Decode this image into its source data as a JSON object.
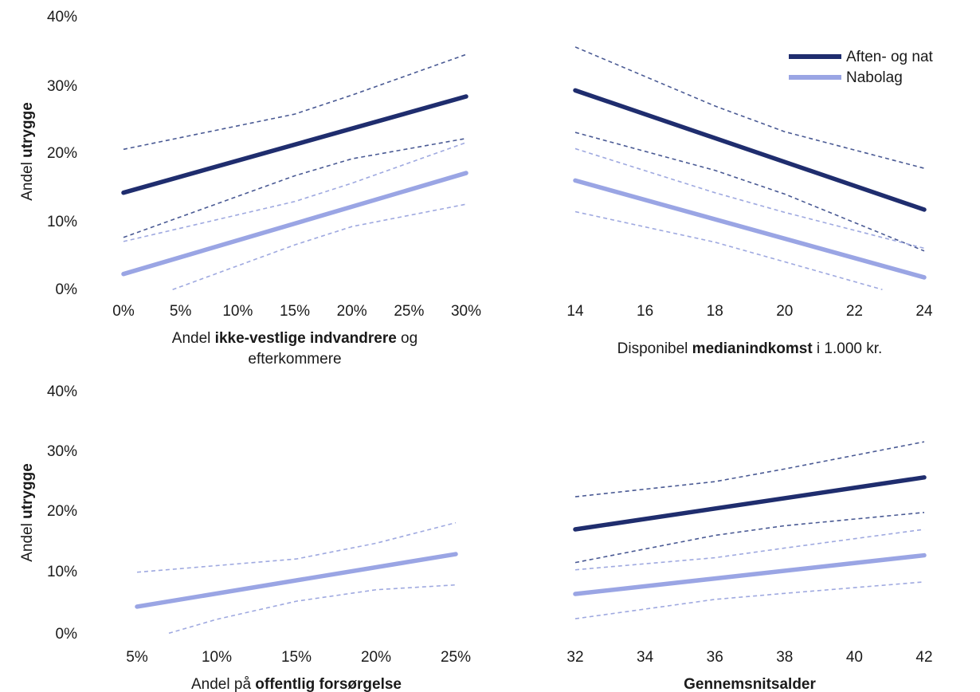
{
  "colors": {
    "evening": "#1f2d6e",
    "neighborhood": "#9aa5e4",
    "evening_ci": "#4a5a94",
    "neighborhood_ci": "#9fa9e0"
  },
  "legend": {
    "evening_label": "Aften- og nat",
    "neighborhood_label": "Nabolag"
  },
  "y_ticks": [
    "0%",
    "10%",
    "20%",
    "30%",
    "40%"
  ],
  "y_label": {
    "pre": "Andel ",
    "bold": "utrygge",
    "post": ""
  },
  "chart_data": [
    {
      "type": "line",
      "xlabel": {
        "pre": "Andel ",
        "bold": "ikke-vestlige indvandrere",
        "post": " og",
        "line2": "efterkommere"
      },
      "x_tick_labels": [
        "0%",
        "5%",
        "10%",
        "15%",
        "20%",
        "25%",
        "30%"
      ],
      "x_ticks": [
        0,
        5,
        10,
        15,
        20,
        25,
        30
      ],
      "xlim": [
        0,
        30
      ],
      "ylim": [
        0,
        40
      ],
      "series": [
        {
          "name": "Aften- og nat",
          "x": [
            0,
            30
          ],
          "y": [
            13.8,
            28
          ],
          "ci_upper": {
            "x": [
              0,
              15,
              20,
              30
            ],
            "y": [
              20.2,
              25.4,
              28.2,
              34.2
            ]
          },
          "ci_lower": {
            "x": [
              0,
              15,
              20,
              30
            ],
            "y": [
              7.2,
              16.3,
              18.8,
              21.8
            ]
          }
        },
        {
          "name": "Nabolag",
          "x": [
            0,
            30
          ],
          "y": [
            1.8,
            16.7
          ],
          "ci_upper": {
            "x": [
              0,
              15,
              20,
              30
            ],
            "y": [
              6.6,
              12.5,
              15.2,
              21.2
            ]
          },
          "ci_lower": {
            "x": [
              4.3,
              15,
              20,
              30
            ],
            "y": [
              -0.5,
              6.1,
              8.8,
              12.1
            ]
          }
        }
      ]
    },
    {
      "type": "line",
      "xlabel": {
        "pre": "Disponibel ",
        "bold": "medianindkomst",
        "post": " i 1.000 kr.",
        "line2": ""
      },
      "x_tick_labels": [
        "14",
        "16",
        "18",
        "20",
        "22",
        "24"
      ],
      "x_ticks": [
        14,
        16,
        18,
        20,
        22,
        24
      ],
      "xlim": [
        14,
        24
      ],
      "ylim": [
        0,
        40
      ],
      "series": [
        {
          "name": "Aften- og nat",
          "x": [
            14,
            24
          ],
          "y": [
            28.9,
            11.3
          ],
          "ci_upper": {
            "x": [
              14,
              18,
              20,
              24
            ],
            "y": [
              35.3,
              26.6,
              22.8,
              17.4
            ]
          },
          "ci_lower": {
            "x": [
              14,
              18,
              20,
              24
            ],
            "y": [
              22.7,
              17.1,
              13.6,
              5.2
            ]
          }
        },
        {
          "name": "Nabolag",
          "x": [
            14,
            24
          ],
          "y": [
            15.6,
            1.3
          ],
          "ci_upper": {
            "x": [
              14,
              18,
              20,
              24
            ],
            "y": [
              20.3,
              13.8,
              10.9,
              5.6
            ]
          },
          "ci_lower": {
            "x": [
              14,
              18,
              20,
              22.8
            ],
            "y": [
              11,
              6.5,
              3.6,
              -0.5
            ]
          }
        }
      ]
    },
    {
      "type": "line",
      "xlabel": {
        "pre": "Andel på ",
        "bold": "offentlig forsørgelse",
        "post": "",
        "line2": ""
      },
      "x_tick_labels": [
        "5%",
        "10%",
        "15%",
        "20%",
        "25%"
      ],
      "x_ticks": [
        5,
        10,
        15,
        20,
        25
      ],
      "xlim": [
        5,
        25
      ],
      "ylim": [
        0,
        40
      ],
      "series": [
        {
          "name": "Nabolag",
          "x": [
            5,
            25
          ],
          "y": [
            4.1,
            12.8
          ],
          "ci_upper": {
            "x": [
              5,
              15,
              20,
              25
            ],
            "y": [
              9.8,
              12,
              14.6,
              18
            ]
          },
          "ci_lower": {
            "x": [
              7,
              10,
              15,
              20,
              25
            ],
            "y": [
              -0.3,
              2,
              5,
              6.9,
              7.7
            ]
          }
        }
      ]
    },
    {
      "type": "line",
      "xlabel": {
        "pre": "",
        "bold": "Gennemsnitsalder",
        "post": "",
        "line2": ""
      },
      "x_tick_labels": [
        "32",
        "34",
        "36",
        "38",
        "40",
        "42"
      ],
      "x_ticks": [
        32,
        34,
        36,
        38,
        40,
        42
      ],
      "xlim": [
        32,
        42
      ],
      "ylim": [
        0,
        40
      ],
      "series": [
        {
          "name": "Aften- og nat",
          "x": [
            32,
            42
          ],
          "y": [
            16.9,
            25.5
          ],
          "ci_upper": {
            "x": [
              32,
              36,
              38,
              42
            ],
            "y": [
              22.3,
              24.8,
              26.9,
              31.4
            ]
          },
          "ci_lower": {
            "x": [
              32,
              36,
              38,
              42
            ],
            "y": [
              11.4,
              15.9,
              17.5,
              19.7
            ]
          }
        },
        {
          "name": "Nabolag",
          "x": [
            32,
            42
          ],
          "y": [
            6.2,
            12.6
          ],
          "ci_upper": {
            "x": [
              32,
              36,
              38,
              42
            ],
            "y": [
              10.2,
              12.2,
              13.8,
              16.9
            ]
          },
          "ci_lower": {
            "x": [
              32,
              36,
              38,
              42
            ],
            "y": [
              2.1,
              5.3,
              6.3,
              8.2
            ]
          }
        }
      ]
    }
  ]
}
